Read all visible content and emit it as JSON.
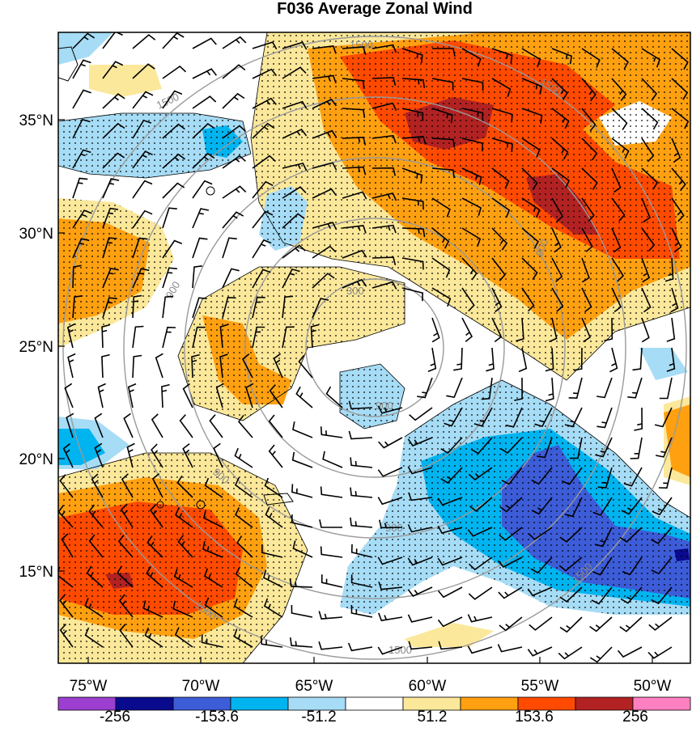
{
  "title": "F036 Average Zonal Wind",
  "lat_labels": [
    "35°N",
    "30°N",
    "25°N",
    "20°N",
    "15°N"
  ],
  "lon_labels": [
    "75°W",
    "70°W",
    "65°W",
    "60°W",
    "55°W",
    "50°W"
  ],
  "colorbar": {
    "labels": [
      "-256",
      "-153.6",
      "-51.2",
      "51.2",
      "153.6",
      "256"
    ],
    "colors": [
      "#9c3fd0",
      "#0a0a8f",
      "#3d5cd8",
      "#00b4f0",
      "#a6dcf5",
      "#ffffff",
      "#fbe89a",
      "#ffa010",
      "#ff4a00",
      "#b22222",
      "#ff80c0"
    ]
  },
  "range_rings": [
    "300",
    "900",
    "1500"
  ],
  "colors": {
    "neg_strong": "#3d5cd8",
    "neg_mid": "#00b4f0",
    "neg_light": "#a6dcf5",
    "pos_light": "#fbe89a",
    "pos_mid": "#ffa010",
    "pos_strong": "#ff4a00",
    "pos_max": "#b22222",
    "ring": "#9a9a9a"
  }
}
